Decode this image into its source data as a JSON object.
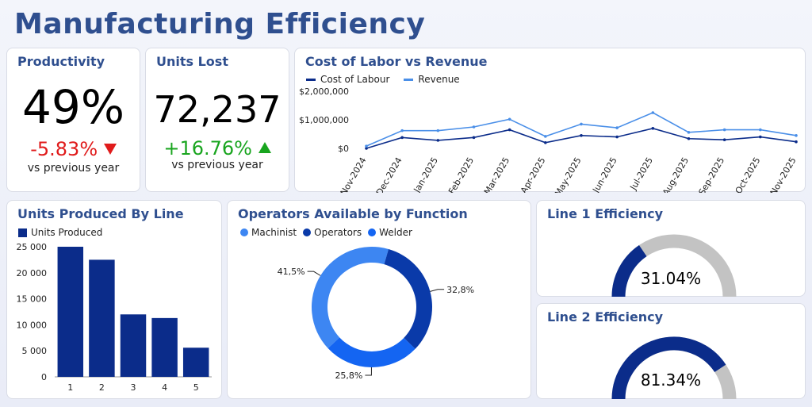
{
  "title": "Manufacturing Efficiency",
  "colors": {
    "accent": "#2f4f8f",
    "navy": "#0b2c8a",
    "light_blue": "#4a8fe8",
    "negative": "#e01b1b",
    "positive": "#19a51f",
    "gauge_bg": "#c3c3c3",
    "donut_machinist": "#3d86f2",
    "donut_operators": "#0a3aa9",
    "donut_welder": "#1465f2"
  },
  "productivity": {
    "title": "Productivity",
    "value": "49%",
    "change": "-5.83%",
    "change_icon": "triangle-down-icon",
    "sub": "vs previous year"
  },
  "units_lost": {
    "title": "Units Lost",
    "value": "72,237",
    "change": "+16.76%",
    "change_icon": "triangle-up-icon",
    "sub": "vs previous year"
  },
  "labor": {
    "title": "Cost of Labor vs Revenue",
    "legend": [
      "Cost of Labour",
      "Revenue"
    ]
  },
  "units_produced": {
    "title": "Units Produced By Line",
    "legend": "Units Produced"
  },
  "operators": {
    "title": "Operators Available by Function",
    "legend": [
      "Machinist",
      "Operators",
      "Welder"
    ]
  },
  "line1": {
    "title": "Line 1 Efficiency",
    "label": "31.04%",
    "value": 0.3104
  },
  "line2": {
    "title": "Line 2 Efficiency",
    "label": "81.34%",
    "value": 0.8134
  },
  "chart_data": [
    {
      "type": "line",
      "title": "Cost of Labor vs Revenue",
      "x": [
        "Nov-2024",
        "Dec-2024",
        "Jan-2025",
        "Feb-2025",
        "Mar-2025",
        "Apr-2025",
        "May-2025",
        "Jun-2025",
        "Jul-2025",
        "Aug-2025",
        "Sep-2025",
        "Oct-2025",
        "Nov-2025"
      ],
      "series": [
        {
          "name": "Cost of Labour",
          "values": [
            0,
            380000,
            280000,
            380000,
            650000,
            200000,
            450000,
            400000,
            700000,
            340000,
            300000,
            400000,
            230000
          ]
        },
        {
          "name": "Revenue",
          "values": [
            80000,
            620000,
            620000,
            750000,
            1020000,
            420000,
            850000,
            720000,
            1250000,
            560000,
            650000,
            650000,
            450000
          ]
        }
      ],
      "y_ticks": [
        "$2,000,000",
        "$1,000,000",
        "$0"
      ],
      "ylim": [
        0,
        2000000
      ],
      "legend": "top-left"
    },
    {
      "type": "bar",
      "title": "Units Produced By Line",
      "categories": [
        "1",
        "2",
        "3",
        "4",
        "5"
      ],
      "series": [
        {
          "name": "Units Produced",
          "values": [
            25000,
            22500,
            12000,
            11300,
            5600
          ]
        }
      ],
      "y_ticks": [
        "25 000",
        "20 000",
        "15 000",
        "10 000",
        "5 000",
        "0"
      ],
      "ylim": [
        0,
        25000
      ],
      "legend": "top-left"
    },
    {
      "type": "pie",
      "title": "Operators Available by Function",
      "labels": [
        "Machinist",
        "Operators",
        "Welder"
      ],
      "values": [
        41.5,
        32.8,
        25.8
      ],
      "value_labels": [
        "41,5%",
        "32,8%",
        "25,8%"
      ],
      "legend": "top-left"
    }
  ]
}
